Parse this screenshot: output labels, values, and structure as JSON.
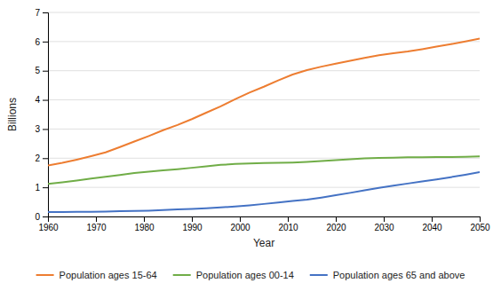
{
  "chart_data": {
    "type": "line",
    "x": [
      1960,
      1963,
      1966,
      1969,
      1972,
      1975,
      1978,
      1981,
      1984,
      1987,
      1990,
      1993,
      1996,
      1999,
      2002,
      2005,
      2008,
      2011,
      2014,
      2017,
      2020,
      2023,
      2026,
      2029,
      2032,
      2035,
      2038,
      2041,
      2044,
      2047,
      2050
    ],
    "series": [
      {
        "name": "Population ages 15-64",
        "color": "#ed7d31",
        "values": [
          1.75,
          1.84,
          1.95,
          2.07,
          2.2,
          2.38,
          2.57,
          2.76,
          2.96,
          3.14,
          3.34,
          3.56,
          3.78,
          4.02,
          4.25,
          4.45,
          4.67,
          4.87,
          5.02,
          5.14,
          5.24,
          5.34,
          5.44,
          5.53,
          5.6,
          5.66,
          5.74,
          5.83,
          5.91,
          6.0,
          6.1
        ]
      },
      {
        "name": "Population ages 00-14",
        "color": "#70ad47",
        "values": [
          1.12,
          1.17,
          1.23,
          1.3,
          1.36,
          1.42,
          1.49,
          1.54,
          1.58,
          1.62,
          1.67,
          1.72,
          1.77,
          1.8,
          1.82,
          1.83,
          1.84,
          1.85,
          1.87,
          1.9,
          1.93,
          1.96,
          1.99,
          2.01,
          2.02,
          2.03,
          2.03,
          2.04,
          2.04,
          2.05,
          2.06
        ]
      },
      {
        "name": "Population ages 65 and above",
        "color": "#4472c4",
        "values": [
          0.15,
          0.15,
          0.16,
          0.16,
          0.17,
          0.18,
          0.19,
          0.2,
          0.22,
          0.24,
          0.26,
          0.28,
          0.31,
          0.34,
          0.38,
          0.43,
          0.48,
          0.53,
          0.58,
          0.65,
          0.73,
          0.81,
          0.9,
          0.98,
          1.06,
          1.13,
          1.2,
          1.27,
          1.35,
          1.43,
          1.52
        ]
      }
    ],
    "xlabel": "Year",
    "ylabel": "Billions",
    "xlim": [
      1960,
      2050
    ],
    "xticks": [
      1960,
      1970,
      1980,
      1990,
      2000,
      2010,
      2020,
      2030,
      2040,
      2050
    ],
    "ylim": [
      0,
      7
    ],
    "yticks": [
      0,
      1,
      2,
      3,
      4,
      5,
      6,
      7
    ],
    "grid": true,
    "legend": "bottom"
  }
}
